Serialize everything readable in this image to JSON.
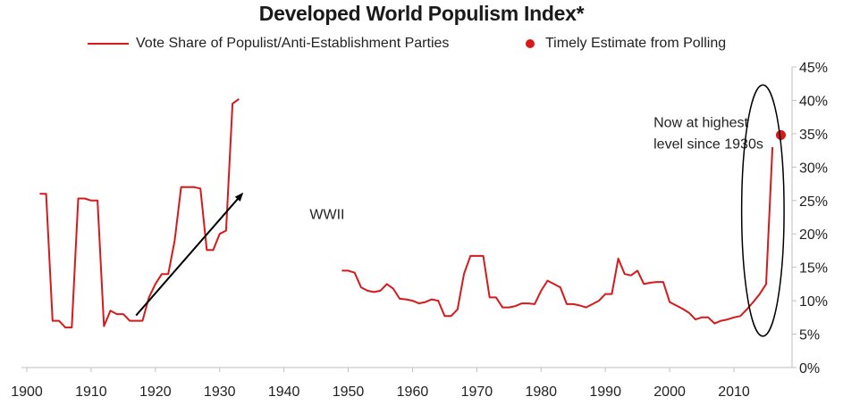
{
  "chart_data": {
    "type": "line",
    "title": "Developed World Populism Index*",
    "xlabel": "",
    "ylabel": "",
    "xlim": [
      1900,
      2020
    ],
    "ylim": [
      0,
      45
    ],
    "x_ticks": [
      1900,
      1910,
      1920,
      1930,
      1940,
      1950,
      1960,
      1970,
      1980,
      1990,
      2000,
      2010
    ],
    "y_ticks": [
      "0%",
      "5%",
      "10%",
      "15%",
      "20%",
      "25%",
      "30%",
      "35%",
      "40%",
      "45%"
    ],
    "y_tick_values": [
      0,
      5,
      10,
      15,
      20,
      25,
      30,
      35,
      40,
      45
    ],
    "y_axis_side": "right",
    "grid": false,
    "legend_position": "top",
    "series": [
      {
        "name": "Vote Share of Populist/Anti-Establishment Parties",
        "color": "#d7191c",
        "segments": [
          [
            [
              1902,
              26.0
            ],
            [
              1903,
              26.0
            ],
            [
              1904,
              7.0
            ],
            [
              1905,
              7.0
            ],
            [
              1906,
              6.0
            ],
            [
              1907,
              6.0
            ],
            [
              1908,
              25.3
            ],
            [
              1909,
              25.3
            ],
            [
              1910,
              25.0
            ],
            [
              1911,
              25.0
            ],
            [
              1912,
              6.2
            ],
            [
              1913,
              8.5
            ],
            [
              1914,
              8.0
            ],
            [
              1915,
              8.0
            ],
            [
              1916,
              7.0
            ],
            [
              1917,
              7.0
            ],
            [
              1918,
              7.0
            ],
            [
              1919,
              10.5
            ],
            [
              1920,
              12.5
            ],
            [
              1921,
              14.0
            ],
            [
              1922,
              14.0
            ],
            [
              1923,
              19.0
            ],
            [
              1924,
              27.0
            ],
            [
              1925,
              27.0
            ],
            [
              1926,
              27.0
            ],
            [
              1927,
              26.8
            ],
            [
              1928,
              17.6
            ],
            [
              1929,
              17.6
            ],
            [
              1930,
              20.0
            ],
            [
              1931,
              20.5
            ],
            [
              1932,
              39.5
            ],
            [
              1933,
              40.2
            ]
          ],
          [
            [
              1949,
              14.5
            ],
            [
              1950,
              14.5
            ],
            [
              1951,
              14.2
            ],
            [
              1952,
              12.0
            ],
            [
              1953,
              11.5
            ],
            [
              1954,
              11.3
            ],
            [
              1955,
              11.5
            ],
            [
              1956,
              12.5
            ],
            [
              1957,
              11.8
            ],
            [
              1958,
              10.3
            ],
            [
              1959,
              10.2
            ],
            [
              1960,
              10.0
            ],
            [
              1961,
              9.6
            ],
            [
              1962,
              9.8
            ],
            [
              1963,
              10.2
            ],
            [
              1964,
              10.0
            ],
            [
              1965,
              7.7
            ],
            [
              1966,
              7.7
            ],
            [
              1967,
              8.7
            ],
            [
              1968,
              14.0
            ],
            [
              1969,
              16.7
            ],
            [
              1970,
              16.7
            ],
            [
              1971,
              16.7
            ],
            [
              1972,
              10.5
            ],
            [
              1973,
              10.5
            ],
            [
              1974,
              9.0
            ],
            [
              1975,
              9.0
            ],
            [
              1976,
              9.2
            ],
            [
              1977,
              9.6
            ],
            [
              1978,
              9.6
            ],
            [
              1979,
              9.5
            ],
            [
              1980,
              11.5
            ],
            [
              1981,
              13.0
            ],
            [
              1982,
              12.5
            ],
            [
              1983,
              12.0
            ],
            [
              1984,
              9.5
            ],
            [
              1985,
              9.5
            ],
            [
              1986,
              9.3
            ],
            [
              1987,
              9.0
            ],
            [
              1988,
              9.5
            ],
            [
              1989,
              10.0
            ],
            [
              1990,
              11.0
            ],
            [
              1991,
              11.0
            ],
            [
              1992,
              16.3
            ],
            [
              1993,
              14.0
            ],
            [
              1994,
              13.8
            ],
            [
              1995,
              14.5
            ],
            [
              1996,
              12.5
            ],
            [
              1997,
              12.7
            ],
            [
              1998,
              12.8
            ],
            [
              1999,
              12.8
            ],
            [
              2000,
              9.8
            ],
            [
              2001,
              9.3
            ],
            [
              2002,
              8.8
            ],
            [
              2003,
              8.2
            ],
            [
              2004,
              7.2
            ],
            [
              2005,
              7.5
            ],
            [
              2006,
              7.5
            ],
            [
              2007,
              6.6
            ],
            [
              2008,
              7.0
            ],
            [
              2009,
              7.2
            ],
            [
              2010,
              7.5
            ],
            [
              2011,
              7.7
            ],
            [
              2012,
              8.7
            ],
            [
              2013,
              9.8
            ],
            [
              2014,
              11.0
            ],
            [
              2015,
              12.5
            ],
            [
              2016,
              33.0
            ]
          ]
        ]
      },
      {
        "name": "Timely Estimate from Polling",
        "color": "#d7191c",
        "type": "scatter",
        "points": [
          [
            2017.3,
            34.8
          ]
        ]
      }
    ],
    "annotations": {
      "arrow": {
        "from": [
          1917,
          7.8
        ],
        "to": [
          1933.5,
          26.0
        ]
      },
      "wwii_label": {
        "text": "WWII",
        "at": [
          1944,
          22.2
        ]
      },
      "note_lines": [
        "Now at highest",
        "level since 1930s"
      ],
      "note_at": [
        1997.5,
        36.0
      ],
      "ellipse": {
        "center": [
          2014.5,
          23.5
        ],
        "radius_years": 3.3,
        "radius_pct": 18.8
      }
    }
  }
}
